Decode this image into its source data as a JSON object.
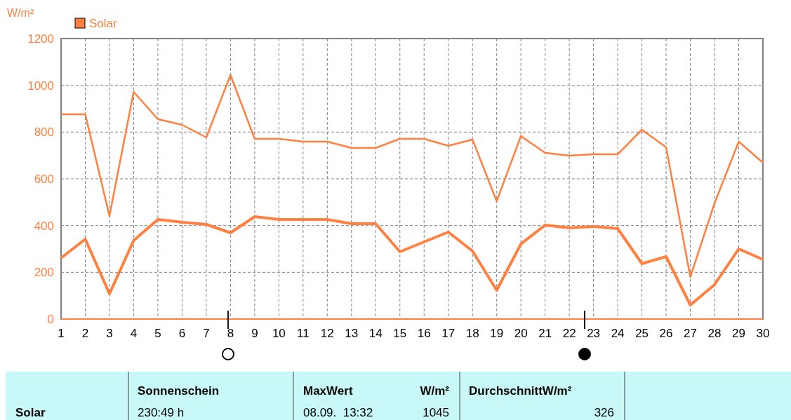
{
  "chart_data": {
    "type": "line",
    "ylabel": "W/m²",
    "x": [
      1,
      2,
      3,
      4,
      5,
      6,
      7,
      8,
      9,
      10,
      11,
      12,
      13,
      14,
      15,
      16,
      17,
      18,
      19,
      20,
      21,
      22,
      23,
      24,
      25,
      26,
      27,
      28,
      29,
      30
    ],
    "series": [
      {
        "name": "Solar",
        "color": "#ff8040",
        "values": [
          876,
          876,
          441,
          972,
          855,
          831,
          777,
          1044,
          771,
          771,
          759,
          759,
          732,
          732,
          771,
          771,
          741,
          768,
          504,
          783,
          711,
          699,
          705,
          705,
          810,
          735,
          180,
          495,
          759,
          669
        ]
      },
      {
        "color": "#ff8040",
        "values": [
          261,
          342,
          108,
          336,
          426,
          414,
          405,
          369,
          438,
          426,
          426,
          426,
          408,
          408,
          288,
          330,
          372,
          291,
          123,
          321,
          402,
          390,
          396,
          387,
          237,
          267,
          60,
          147,
          300,
          255
        ]
      }
    ],
    "xlim": [
      1,
      30
    ],
    "xticks": [
      1,
      2,
      3,
      4,
      5,
      6,
      7,
      8,
      9,
      10,
      11,
      12,
      13,
      14,
      15,
      16,
      17,
      18,
      19,
      20,
      21,
      22,
      23,
      24,
      25,
      26,
      27,
      28,
      29,
      30
    ],
    "ylim": [
      0,
      1200
    ],
    "yticks": [
      0,
      200,
      400,
      600,
      800,
      1000,
      1200
    ],
    "grid": true,
    "legend": "top left",
    "line_style": "solid",
    "annotations": [
      "Sonnenschein",
      "MaxWert",
      "W/m²",
      "DurchschnittW/m²",
      "Solar",
      "230:49 h",
      "08.09.  13:32",
      "1045",
      "326"
    ]
  }
}
